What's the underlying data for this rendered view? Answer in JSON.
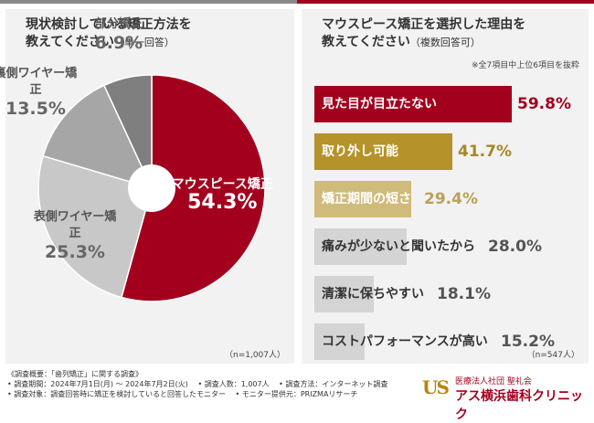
{
  "left_panel": {
    "title": "現状検討している矯正方法を\n教えてください",
    "title_sub": "（単一回答）",
    "n_label": "（n=1,007人）"
  },
  "right_panel": {
    "title": "マウスピース矯正を選択した理由を\n教えてください",
    "title_sub": "（複数回答可）",
    "note": "※全7項目中上位6項目を抜粋",
    "n_label": "（n=547人）"
  },
  "chart_data": [
    {
      "type": "pie",
      "title": "現状検討している矯正方法を教えてください（単一回答）",
      "slices": [
        {
          "label": "マウスピース矯正",
          "value": 54.3,
          "display": "54.3%",
          "color": "#a3001e"
        },
        {
          "label": "表側ワイヤー矯正",
          "value": 25.3,
          "display": "25.3%",
          "color": "#c8c8c8"
        },
        {
          "label": "裏側ワイヤー矯正",
          "value": 13.5,
          "display": "13.5%",
          "color": "#a6a6a6"
        },
        {
          "label": "部分矯正",
          "value": 6.9,
          "display": "6.9%",
          "color": "#7f7f7f"
        }
      ]
    },
    {
      "type": "bar",
      "orientation": "horizontal",
      "title": "マウスピース矯正を選択した理由を教えてください（複数回答可）",
      "categories": [
        "見た目が目立たない",
        "取り外し可能",
        "矯正期間の短さ",
        "痛みが少ないと聞いたから",
        "清潔に保ちやすい",
        "コストパフォーマンスが高い"
      ],
      "values": [
        59.8,
        41.7,
        29.4,
        28.0,
        18.1,
        15.2
      ],
      "display": [
        "59.8%",
        "41.7%",
        "29.4%",
        "28.0%",
        "18.1%",
        "15.2%"
      ],
      "colors": [
        "#a3001e",
        "#b5922a",
        "#cfbb7a",
        "#d4d4d4",
        "#d4d4d4",
        "#d4d4d4"
      ],
      "text_colors": [
        "#ffffff",
        "#ffffff",
        "#ffffff",
        "#333333",
        "#333333",
        "#333333"
      ],
      "value_colors": [
        "#a3001e",
        "#a88628",
        "#b8a25a",
        "#555555",
        "#555555",
        "#555555"
      ]
    }
  ],
  "footer": {
    "lines": [
      "《調査概要：「歯列矯正」に関する調査》",
      "• 調査期間：2024年7月1日(月) ～ 2024年7月2日(火)　 • 調査人数：1,007人　 • 調査方法：インターネット調査",
      "• 調査対象：調査回答時に矯正を検討していると回答したモニター　 • モニター提供元：PRIZMAリサーチ"
    ]
  },
  "logo": {
    "mark": "US",
    "subtitle": "医療法人社団 聖礼会",
    "name": "アス横浜歯科クリニック"
  }
}
